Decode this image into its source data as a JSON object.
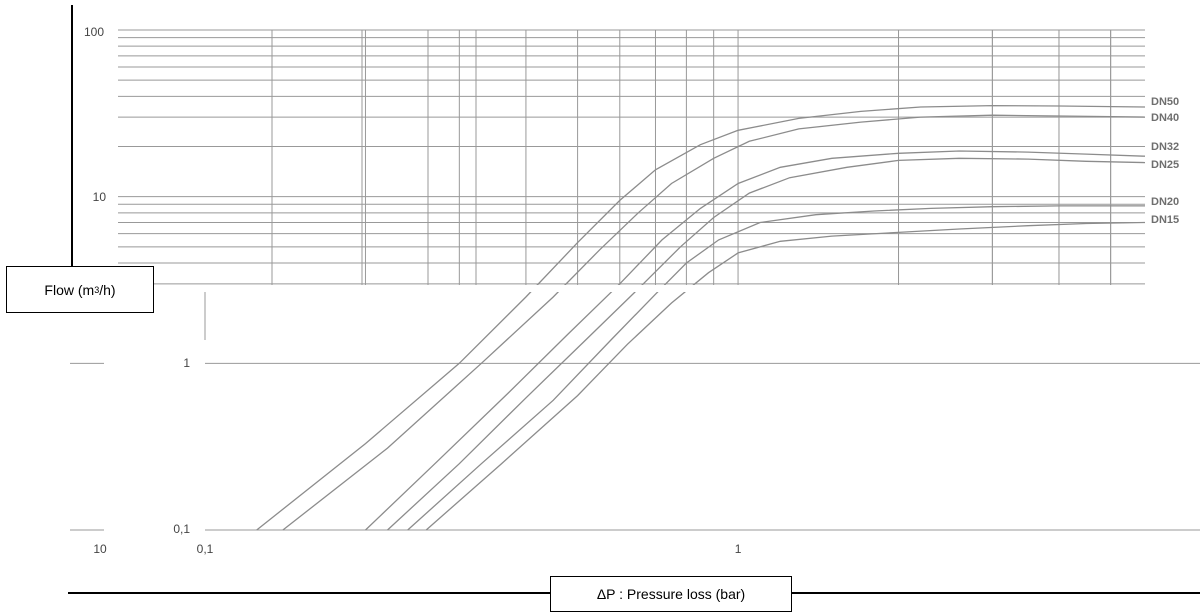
{
  "chart_data": {
    "type": "line",
    "x_scale": "log",
    "y_scale": "log",
    "xlim": [
      0.1,
      5.8
    ],
    "ylim": [
      0.1,
      100
    ],
    "grid": true,
    "ylabel": "Flow (m",
    "ylabel_sup": "3",
    "ylabel_tail": "/h)",
    "xlabel": "ΔP : Pressure loss (bar)",
    "x_tick_labels": [
      {
        "value": 0.1,
        "label": "0,1"
      },
      {
        "value": 1,
        "label": "1"
      }
    ],
    "y_tick_labels": [
      {
        "value": 100,
        "label": "100"
      },
      {
        "value": 10,
        "label": "10"
      },
      {
        "value": 1,
        "label": "1"
      },
      {
        "value": 0.1,
        "label": "0,1"
      }
    ],
    "stray_labels": [
      "10"
    ],
    "series": [
      {
        "name": "DN50",
        "x": [
          0.125,
          0.2,
          0.3,
          0.4,
          0.5,
          0.6,
          0.7,
          0.85,
          1.0,
          1.3,
          1.7,
          2.2,
          3.0,
          4.0,
          5.8
        ],
        "y": [
          0.1,
          0.33,
          1.0,
          2.5,
          5.3,
          9.5,
          14.5,
          20.5,
          25,
          29.5,
          32.5,
          34.5,
          35.2,
          35,
          34.5
        ]
      },
      {
        "name": "DN40",
        "x": [
          0.14,
          0.22,
          0.33,
          0.45,
          0.55,
          0.65,
          0.75,
          0.9,
          1.05,
          1.3,
          1.7,
          2.2,
          3.0,
          4.0,
          5.8
        ],
        "y": [
          0.1,
          0.31,
          1.0,
          2.5,
          4.8,
          8.0,
          12.0,
          17.0,
          21.5,
          25.5,
          28.0,
          30.0,
          30.8,
          30.5,
          30.0
        ]
      },
      {
        "name": "DN32",
        "x": [
          0.2,
          0.27,
          0.37,
          0.48,
          0.6,
          0.72,
          0.85,
          1.0,
          1.2,
          1.5,
          2.0,
          2.6,
          3.5,
          4.5,
          5.8
        ],
        "y": [
          0.1,
          0.25,
          0.66,
          1.5,
          3.0,
          5.5,
          8.5,
          12.0,
          15.0,
          17.0,
          18.2,
          18.8,
          18.5,
          18.0,
          17.5
        ]
      },
      {
        "name": "DN25",
        "x": [
          0.22,
          0.3,
          0.4,
          0.52,
          0.65,
          0.78,
          0.9,
          1.05,
          1.25,
          1.6,
          2.0,
          2.6,
          3.5,
          4.5,
          5.8
        ],
        "y": [
          0.1,
          0.25,
          0.62,
          1.4,
          2.8,
          5.0,
          7.5,
          10.5,
          13.0,
          15.0,
          16.5,
          17.0,
          16.8,
          16.3,
          16.0
        ]
      },
      {
        "name": "DN20",
        "x": [
          0.24,
          0.33,
          0.45,
          0.58,
          0.7,
          0.8,
          0.92,
          1.1,
          1.4,
          1.8,
          2.3,
          3.0,
          4.0,
          5.8
        ],
        "y": [
          0.1,
          0.25,
          0.6,
          1.4,
          2.6,
          4.0,
          5.5,
          7.0,
          7.8,
          8.2,
          8.5,
          8.7,
          8.8,
          8.8
        ]
      },
      {
        "name": "DN15",
        "x": [
          0.26,
          0.36,
          0.5,
          0.62,
          0.75,
          0.88,
          1.0,
          1.2,
          1.5,
          2.0,
          2.6,
          3.5,
          4.5,
          5.8
        ],
        "y": [
          0.1,
          0.25,
          0.64,
          1.3,
          2.3,
          3.5,
          4.6,
          5.4,
          5.8,
          6.1,
          6.4,
          6.7,
          6.9,
          7.0
        ]
      }
    ],
    "colors": {
      "grid": "#999999",
      "curve": "#8c8c8c",
      "axis": "#000000",
      "text": "#444444"
    }
  }
}
